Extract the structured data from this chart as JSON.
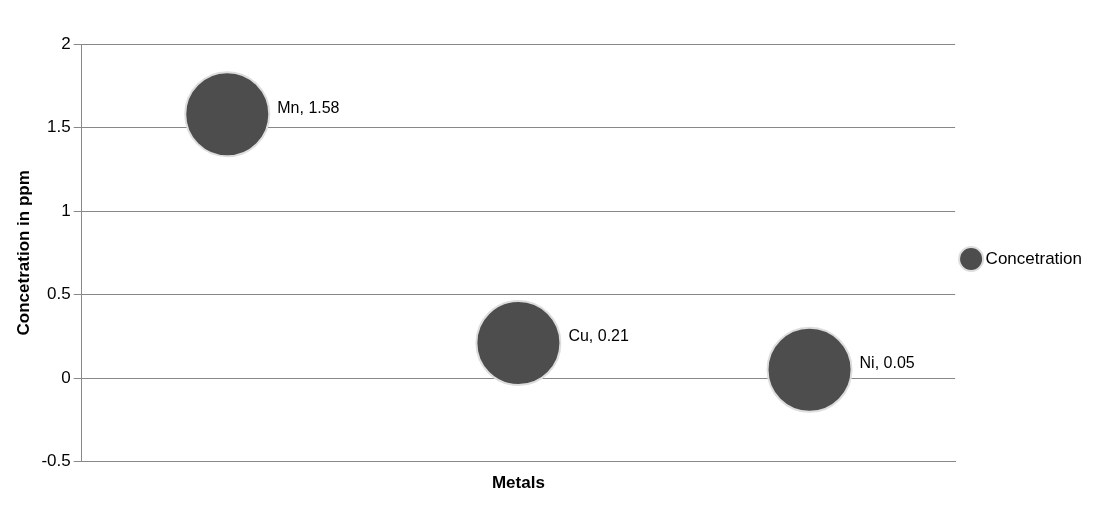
{
  "chart_data": {
    "type": "bubble",
    "xlabel": "Metals",
    "ylabel": "Concetration in ppm",
    "categories": [
      null,
      null,
      null
    ],
    "series": [
      {
        "name": "Concetration",
        "color": "#4d4d4d",
        "values": [
          1.58,
          0.21,
          0.05
        ],
        "sizes": [
          1,
          1,
          1
        ],
        "value_labels": [
          "Mn, 1.58",
          "Cu, 0.21",
          "Ni, 0.05"
        ]
      }
    ],
    "ylim": [
      -0.5,
      2
    ],
    "yticks": [
      -0.5,
      0,
      0.5,
      1,
      1.5,
      2
    ],
    "grid": "y",
    "legend": "right"
  }
}
